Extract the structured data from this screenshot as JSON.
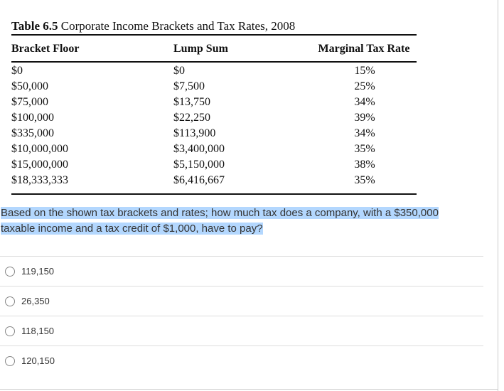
{
  "table": {
    "label": "Table 6.5",
    "title": "Corporate Income Brackets and Tax Rates, 2008",
    "headers": [
      "Bracket Floor",
      "Lump Sum",
      "Marginal Tax Rate"
    ],
    "rows": [
      [
        "$0",
        "$0",
        "15%"
      ],
      [
        "$50,000",
        "$7,500",
        "25%"
      ],
      [
        "$75,000",
        "$13,750",
        "34%"
      ],
      [
        "$100,000",
        "$22,250",
        "39%"
      ],
      [
        "$335,000",
        "$113,900",
        "34%"
      ],
      [
        "$10,000,000",
        "$3,400,000",
        "35%"
      ],
      [
        "$15,000,000",
        "$5,150,000",
        "38%"
      ],
      [
        "$18,333,333",
        "$6,416,667",
        "35%"
      ]
    ]
  },
  "question": "Based on the shown tax brackets and rates; how much tax does a company, with a $350,000 taxable income and a tax credit of $1,000, have to pay?",
  "options": [
    "119,150",
    "26,350",
    "118,150",
    "120,150"
  ]
}
